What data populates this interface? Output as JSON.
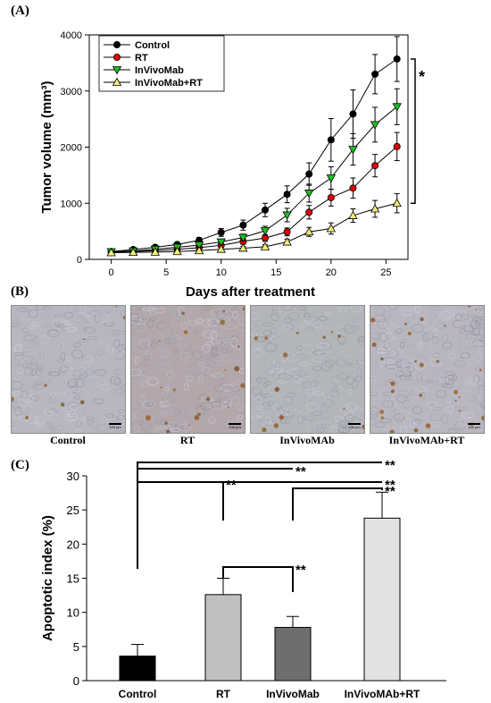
{
  "panel_a": {
    "letter": "(A)"
  },
  "panel_b": {
    "letter": "(B)",
    "images": [
      {
        "label": "Control",
        "scale_bar": "100 µm",
        "tint": "#b8b7bf",
        "stains": 8
      },
      {
        "label": "RT",
        "scale_bar": "100 µm",
        "tint": "#b3a7aa",
        "stains": 20
      },
      {
        "label": "InVivoMAb",
        "scale_bar": "100 µm",
        "tint": "#b3b5b8",
        "stains": 13
      },
      {
        "label": "InVivoMAb+RT",
        "scale_bar": "100 µm",
        "tint": "#bab6bf",
        "stains": 28
      }
    ]
  },
  "panel_c": {
    "letter": "(C)"
  },
  "chart_data": [
    {
      "type": "line",
      "xlabel": "Days after treatment",
      "ylabel": "Tumor volume (mm³)",
      "xlim": [
        -2,
        27
      ],
      "ylim": [
        0,
        4000
      ],
      "xticks": [
        0,
        5,
        10,
        15,
        20,
        25
      ],
      "yticks": [
        0,
        1000,
        2000,
        3000,
        4000
      ],
      "x": [
        0,
        2,
        4,
        6,
        8,
        10,
        12,
        14,
        16,
        18,
        20,
        22,
        24,
        26
      ],
      "series": [
        {
          "name": "Control",
          "marker": "circle",
          "color": "#000000",
          "values": [
            140,
            175,
            215,
            265,
            340,
            480,
            610,
            880,
            1160,
            1520,
            2130,
            2590,
            3300,
            3570
          ],
          "errors": [
            30,
            30,
            35,
            40,
            50,
            70,
            90,
            120,
            150,
            200,
            380,
            430,
            350,
            400
          ]
        },
        {
          "name": "RT",
          "marker": "circle",
          "color": "#e00000",
          "values": [
            125,
            140,
            155,
            180,
            210,
            250,
            320,
            380,
            490,
            840,
            1100,
            1270,
            1670,
            2010
          ],
          "errors": [
            25,
            25,
            25,
            30,
            35,
            40,
            50,
            60,
            70,
            120,
            150,
            180,
            200,
            250
          ]
        },
        {
          "name": "InVivoMab",
          "marker": "triangle-down",
          "color": "#20c020",
          "values": [
            135,
            150,
            180,
            215,
            255,
            310,
            390,
            510,
            790,
            1180,
            1450,
            1960,
            2400,
            2720
          ],
          "errors": [
            25,
            25,
            30,
            35,
            40,
            45,
            60,
            80,
            120,
            160,
            200,
            280,
            310,
            320
          ]
        },
        {
          "name": "InVivoMab+RT",
          "marker": "triangle-up",
          "color": "#f2f07a",
          "values": [
            120,
            125,
            130,
            140,
            155,
            180,
            200,
            225,
            310,
            490,
            550,
            780,
            900,
            1000
          ],
          "errors": [
            20,
            20,
            20,
            20,
            25,
            30,
            30,
            35,
            50,
            80,
            100,
            120,
            150,
            170
          ]
        }
      ],
      "legend": "top-left",
      "significance": "*",
      "grid": false
    },
    {
      "type": "bar",
      "ylabel": "Apoptotic index (%)",
      "categories": [
        "Control",
        "RT",
        "InVivoMab",
        "InVivoMAb+RT"
      ],
      "values": [
        3.6,
        12.6,
        7.8,
        23.8
      ],
      "errors": [
        1.7,
        2.4,
        1.6,
        3.8
      ],
      "colors": [
        "#000000",
        "#c0c0c0",
        "#6e6e6e",
        "#e2e2e2"
      ],
      "ylim": [
        0,
        30
      ],
      "yticks": [
        0,
        5,
        10,
        15,
        20,
        25,
        30
      ],
      "significance_brackets": [
        {
          "from": "Control",
          "to": "InVivoMab",
          "label": "**"
        },
        {
          "from": "Control",
          "to": "InVivoMAb+RT",
          "label": "**"
        },
        {
          "from": "Control",
          "to": "RT",
          "label": "**"
        },
        {
          "from": "RT",
          "to": "InVivoMAb+RT",
          "label": "**"
        },
        {
          "from": "InVivoMab",
          "to": "InVivoMAb+RT",
          "label": "**"
        },
        {
          "from": "RT",
          "to": "InVivoMab",
          "label": "**"
        }
      ],
      "grid": false
    }
  ]
}
